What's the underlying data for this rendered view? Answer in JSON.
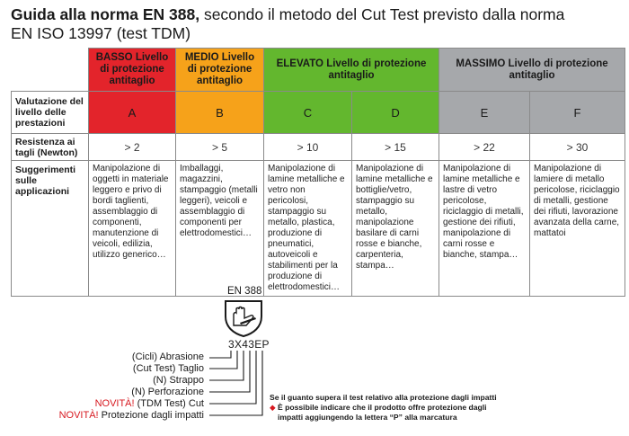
{
  "title": {
    "bold": "Guida alla norma EN 388,",
    "rest": " secondo il metodo del Cut Test previsto dalla norma",
    "line2": "EN ISO 13997 (test TDM)"
  },
  "colors": {
    "red": "#e3242b",
    "orange": "#f6a21a",
    "green": "#63b72e",
    "grey": "#a6a8ab",
    "novita_red": "#d71920"
  },
  "table": {
    "headers": {
      "basso": "BASSO Livello di protezione antitaglio",
      "medio": "MEDIO Livello di protezione antitaglio",
      "elevato": "ELEVATO Livello di protezione antitaglio",
      "massimo": "MASSIMO Livello di protezione antitaglio"
    },
    "row_labels": {
      "valutazione": "Valutazione del livello delle prestazioni",
      "resistenza": "Resistenza ai tagli (Newton)",
      "suggerimenti": "Suggerimenti sulle applicazioni"
    },
    "levels": [
      "A",
      "B",
      "C",
      "D",
      "E",
      "F"
    ],
    "forces": [
      "> 2",
      "> 5",
      "> 10",
      "> 15",
      "> 22",
      "> 30"
    ],
    "applications": [
      "Manipolazione di oggetti in materiale leggero e privo di bordi taglienti, assemblaggio di componenti, manutenzione di veicoli, edilizia, utilizzo generico…",
      "Imballaggi, magazzini, stampaggio (metalli leggeri), veicoli e assemblaggio di componenti per elettrodomestici…",
      "Manipolazione di lamine metalliche e vetro non pericolosi, stampaggio su metallo, plastica, produzione di pneumatici, autoveicoli e stabilimenti per la produzione di elettrodomestici…",
      "Manipolazione di lamine metalliche e bottiglie/vetro, stampaggio su metallo, manipolazione basilare di carni rosse e bianche, carpenteria, stampa…",
      "Manipolazione di lamine metalliche e lastre di vetro pericolose, riciclaggio di metalli, gestione dei rifiuti, manipolazione di carni rosse e bianche, stampa…",
      "Manipolazione di lamiere di metallo pericolose, riciclaggio di metalli, gestione dei rifiuti, lavorazione avanzata della carne, mattatoi"
    ]
  },
  "marking": {
    "standard": "EN 388",
    "code": "3X43EP",
    "legend": [
      {
        "novita": "",
        "text": "(Cicli) Abrasione"
      },
      {
        "novita": "",
        "text": "(Cut Test) Taglio"
      },
      {
        "novita": "",
        "text": "(N) Strappo"
      },
      {
        "novita": "",
        "text": "(N) Perforazione"
      },
      {
        "novita": "NOVITÀ!",
        "text": " (TDM Test) Cut"
      },
      {
        "novita": "NOVITÀ!",
        "text": " Protezione dagli impatti"
      }
    ],
    "note_line1": "Se il guanto supera il test relativo alla protezione dagli impatti",
    "note_line2": "È possibile indicare che il prodotto offre protezione dagli",
    "note_line3": "impatti aggiungendo la lettera “P” alla marcatura"
  }
}
